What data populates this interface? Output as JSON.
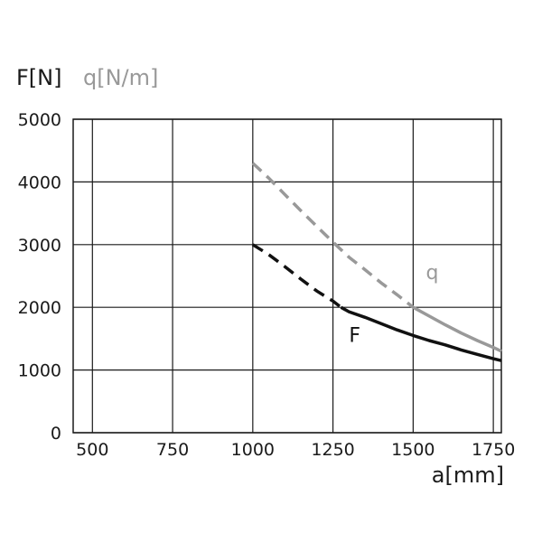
{
  "chart_data": {
    "type": "line",
    "y_axis_titles": [
      {
        "text": "F[N]",
        "color": "#1a1a1a"
      },
      {
        "text": "q[N/m]",
        "color": "#999999"
      }
    ],
    "xlabel": "a[mm]",
    "xlim": [
      440,
      1775
    ],
    "ylim": [
      0,
      5000
    ],
    "x_ticks": [
      500,
      750,
      1000,
      1250,
      1500,
      1750
    ],
    "y_ticks": [
      0,
      1000,
      2000,
      3000,
      4000,
      5000
    ],
    "x_tick_labels": [
      "500",
      "750",
      "1000",
      "1250",
      "1500",
      "1750"
    ],
    "y_tick_labels": [
      "0",
      "1000",
      "2000",
      "3000",
      "4000",
      "5000"
    ],
    "grid": true,
    "series": [
      {
        "name": "F",
        "color": "#111111",
        "label_pos": [
          1300,
          1450
        ],
        "dashed_points": [
          [
            1000,
            3000
          ],
          [
            1050,
            2840
          ],
          [
            1100,
            2650
          ],
          [
            1150,
            2450
          ],
          [
            1200,
            2260
          ],
          [
            1250,
            2100
          ],
          [
            1275,
            2000
          ]
        ],
        "solid_points": [
          [
            1275,
            2000
          ],
          [
            1300,
            1930
          ],
          [
            1350,
            1840
          ],
          [
            1400,
            1740
          ],
          [
            1450,
            1640
          ],
          [
            1500,
            1550
          ],
          [
            1550,
            1470
          ],
          [
            1600,
            1400
          ],
          [
            1650,
            1320
          ],
          [
            1700,
            1250
          ],
          [
            1750,
            1180
          ],
          [
            1775,
            1150
          ]
        ]
      },
      {
        "name": "q",
        "color": "#999999",
        "label_pos": [
          1540,
          2450
        ],
        "dashed_points": [
          [
            1000,
            4300
          ],
          [
            1050,
            4060
          ],
          [
            1100,
            3800
          ],
          [
            1150,
            3540
          ],
          [
            1200,
            3290
          ],
          [
            1250,
            3040
          ],
          [
            1300,
            2800
          ],
          [
            1350,
            2600
          ],
          [
            1400,
            2390
          ],
          [
            1450,
            2200
          ],
          [
            1500,
            2000
          ]
        ],
        "solid_points": [
          [
            1500,
            2000
          ],
          [
            1550,
            1860
          ],
          [
            1600,
            1720
          ],
          [
            1650,
            1590
          ],
          [
            1700,
            1470
          ],
          [
            1750,
            1360
          ],
          [
            1775,
            1300
          ]
        ]
      }
    ]
  }
}
